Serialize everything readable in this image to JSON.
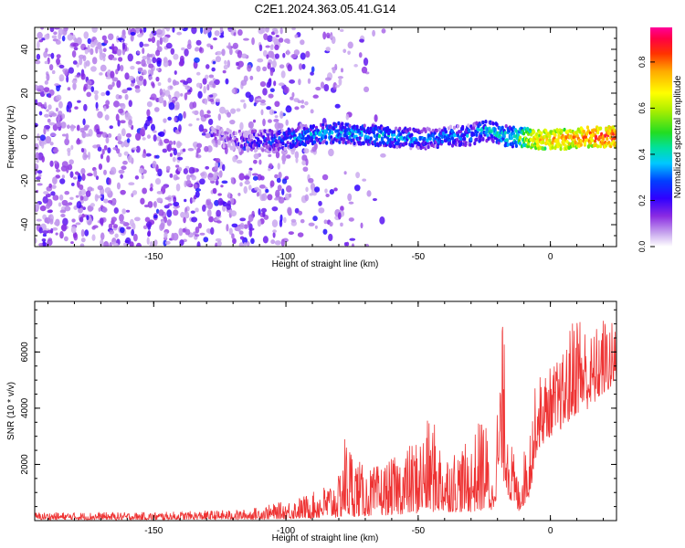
{
  "title": "C2E1.2024.363.05.41.G14",
  "chart_data": [
    {
      "type": "heatmap",
      "xlabel": "Height of straight line (km)",
      "ylabel": "Frequency (Hz)",
      "xlim": [
        -195,
        25
      ],
      "ylim": [
        -50,
        50
      ],
      "x_ticks": [
        -150,
        -100,
        -50,
        0
      ],
      "y_ticks": [
        -40,
        -20,
        0,
        20,
        40
      ],
      "colorbar": {
        "label": "Normalized spectral amplitude",
        "range": [
          0.0,
          0.95
        ],
        "ticks": [
          "0.0",
          "0.2",
          "0.4",
          "0.6",
          "0.8"
        ],
        "colors": [
          "#ffffff",
          "#d9c4f0",
          "#8a2be2",
          "#5a00d0",
          "#0000ff",
          "#00c8ff",
          "#00e0a0",
          "#22dd22",
          "#aaee00",
          "#ffff00",
          "#ffaa00",
          "#ff5500",
          "#ff0000",
          "#ff00aa"
        ]
      },
      "description_regions": {
        "noise_region_km": [
          -195,
          -125
        ],
        "signal_band": [
          {
            "x": -125,
            "y": 0,
            "amp": 0.15
          },
          {
            "x": -115,
            "y": -2,
            "amp": 0.2
          },
          {
            "x": -100,
            "y": -1,
            "amp": 0.3
          },
          {
            "x": -90,
            "y": 1,
            "amp": 0.35
          },
          {
            "x": -80,
            "y": 2,
            "amp": 0.35
          },
          {
            "x": -70,
            "y": 1,
            "amp": 0.35
          },
          {
            "x": -60,
            "y": 0,
            "amp": 0.35
          },
          {
            "x": -50,
            "y": -1,
            "amp": 0.3
          },
          {
            "x": -40,
            "y": 0,
            "amp": 0.3
          },
          {
            "x": -30,
            "y": 1,
            "amp": 0.3
          },
          {
            "x": -25,
            "y": 3,
            "amp": 0.35
          },
          {
            "x": -15,
            "y": 0,
            "amp": 0.4
          },
          {
            "x": -5,
            "y": -1,
            "amp": 0.7
          },
          {
            "x": 5,
            "y": -1,
            "amp": 0.75
          },
          {
            "x": 15,
            "y": 0,
            "amp": 0.8
          },
          {
            "x": 25,
            "y": 0,
            "amp": 0.85
          }
        ]
      }
    },
    {
      "type": "line",
      "xlabel": "Height of straight line (km)",
      "ylabel": "SNR (10 * v/v)",
      "xlim": [
        -195,
        25
      ],
      "ylim": [
        0,
        7800
      ],
      "x_ticks": [
        -150,
        -100,
        -50,
        0
      ],
      "y_ticks": [
        2000,
        4000,
        6000
      ],
      "color": "#ee3333",
      "envelope": [
        {
          "x": -195,
          "lo": 30,
          "hi": 300
        },
        {
          "x": -150,
          "lo": 30,
          "hi": 300
        },
        {
          "x": -115,
          "lo": 40,
          "hi": 400
        },
        {
          "x": -100,
          "lo": 60,
          "hi": 700
        },
        {
          "x": -90,
          "lo": 80,
          "hi": 1000
        },
        {
          "x": -80,
          "lo": 100,
          "hi": 1600
        },
        {
          "x": -78,
          "lo": 120,
          "hi": 3200
        },
        {
          "x": -70,
          "lo": 150,
          "hi": 1800
        },
        {
          "x": -60,
          "lo": 200,
          "hi": 2200
        },
        {
          "x": -50,
          "lo": 250,
          "hi": 3000
        },
        {
          "x": -45,
          "lo": 300,
          "hi": 3800
        },
        {
          "x": -40,
          "lo": 300,
          "hi": 2500
        },
        {
          "x": -30,
          "lo": 300,
          "hi": 2800
        },
        {
          "x": -25,
          "lo": 350,
          "hi": 4100
        },
        {
          "x": -22,
          "lo": 300,
          "hi": 1500
        },
        {
          "x": -18,
          "lo": 1500,
          "hi": 7200
        },
        {
          "x": -15,
          "lo": 600,
          "hi": 3000
        },
        {
          "x": -12,
          "lo": 300,
          "hi": 1500
        },
        {
          "x": -8,
          "lo": 800,
          "hi": 3500
        },
        {
          "x": -5,
          "lo": 2500,
          "hi": 5200
        },
        {
          "x": 0,
          "lo": 3000,
          "hi": 5500
        },
        {
          "x": 5,
          "lo": 3300,
          "hi": 6000
        },
        {
          "x": 10,
          "lo": 3800,
          "hi": 7900
        },
        {
          "x": 15,
          "lo": 4000,
          "hi": 6600
        },
        {
          "x": 20,
          "lo": 4500,
          "hi": 7300
        },
        {
          "x": 25,
          "lo": 4800,
          "hi": 7000
        }
      ]
    }
  ]
}
